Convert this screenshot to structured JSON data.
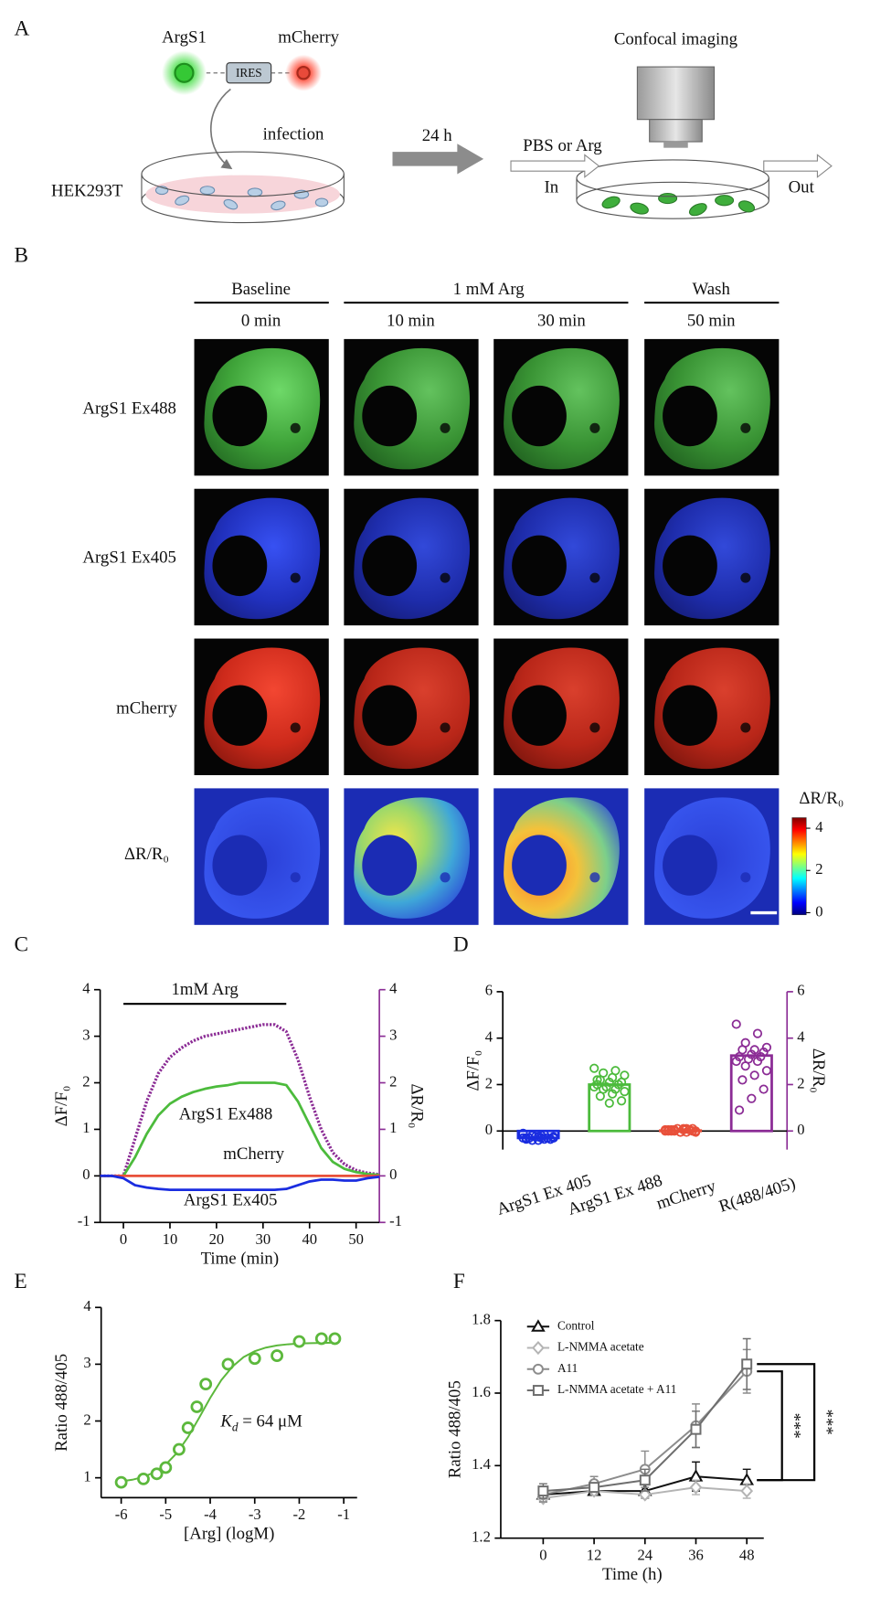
{
  "panel_a": {
    "label": "A",
    "sensor": "ArgS1",
    "reporter": "mCherry",
    "linker": "IRES",
    "infection": "infection",
    "cell_line": "HEK293T",
    "duration": "24 h",
    "imaging": "Confocal imaging",
    "treatment": "PBS or Arg",
    "inlet": "In",
    "outlet": "Out"
  },
  "panel_b": {
    "label": "B",
    "groups": [
      {
        "title": "Baseline",
        "times": [
          "0 min"
        ]
      },
      {
        "title": "1 mM Arg",
        "times": [
          "10 min",
          "30 min"
        ]
      },
      {
        "title": "Wash",
        "times": [
          "50 min"
        ]
      }
    ],
    "rows": [
      "ArgS1 Ex488",
      "ArgS1 Ex405",
      "mCherry",
      "ΔR/R₀"
    ],
    "colorbar": {
      "title": "ΔR/R₀",
      "lim": [
        -0.1,
        4.5
      ],
      "ticks": [
        0,
        2,
        4
      ]
    }
  },
  "chart_data": [
    {
      "panel": "C",
      "type": "line",
      "x": [
        -5,
        -2.5,
        0,
        2.5,
        5,
        7.5,
        10,
        12.5,
        15,
        17.5,
        20,
        22.5,
        25,
        27.5,
        30,
        32.5,
        35,
        37.5,
        40,
        42.5,
        45,
        47.5,
        50,
        52.5,
        55
      ],
      "xlim": [
        -5,
        55
      ],
      "xticks": [
        0,
        10,
        20,
        30,
        40,
        50
      ],
      "ylim": [
        -1,
        4
      ],
      "yticks": [
        -1,
        0,
        1,
        2,
        3,
        4
      ],
      "y2lim": [
        -1,
        4
      ],
      "y2ticks": [
        -1,
        0,
        1,
        2,
        3,
        4
      ],
      "xlabel": "Time (min)",
      "ylabel": "ΔF/F₀",
      "y2label": "ΔR/R₀",
      "annotation": {
        "text": "1mM Arg",
        "x": [
          0,
          35
        ]
      },
      "series": [
        {
          "name": "ArgS1 Ex488",
          "color": "#4cbb3c",
          "values": [
            0,
            0,
            0,
            0.4,
            0.9,
            1.3,
            1.55,
            1.7,
            1.8,
            1.87,
            1.92,
            1.95,
            2.0,
            2.0,
            2.0,
            2.0,
            1.95,
            1.6,
            1.1,
            0.6,
            0.3,
            0.15,
            0.08,
            0.04,
            0.02
          ]
        },
        {
          "name": "mCherry",
          "color": "#e8503a",
          "values": [
            0,
            0,
            0,
            0,
            0,
            0,
            0,
            0,
            0,
            0,
            0,
            0,
            0,
            0,
            0,
            0,
            0,
            0,
            0,
            0,
            0,
            0,
            0,
            0,
            0
          ]
        },
        {
          "name": "ArgS1 Ex405",
          "color": "#1a2de0",
          "values": [
            0,
            0,
            -0.05,
            -0.2,
            -0.25,
            -0.28,
            -0.3,
            -0.3,
            -0.3,
            -0.3,
            -0.3,
            -0.3,
            -0.3,
            -0.3,
            -0.3,
            -0.3,
            -0.28,
            -0.2,
            -0.12,
            -0.08,
            -0.08,
            -0.1,
            -0.1,
            -0.05,
            -0.02
          ]
        },
        {
          "axis": "y2",
          "color": "#8b2c95",
          "values": [
            0,
            0,
            0,
            0.8,
            1.6,
            2.2,
            2.55,
            2.75,
            2.9,
            3.0,
            3.05,
            3.1,
            3.15,
            3.2,
            3.25,
            3.25,
            3.1,
            2.5,
            1.7,
            1.0,
            0.5,
            0.25,
            0.12,
            0.06,
            0.03
          ]
        }
      ]
    },
    {
      "panel": "D",
      "type": "bar",
      "categories": [
        "ArgS1 Ex 405",
        "ArgS1 Ex 488",
        "mCherry",
        "R(488/405)"
      ],
      "colors": [
        "#1a2de0",
        "#4cbb3c",
        "#e8503a",
        "#8b2c95"
      ],
      "ylim": [
        -0.8,
        6
      ],
      "yticks": [
        0,
        2,
        4,
        6
      ],
      "y2lim": [
        -0.8,
        6
      ],
      "y2ticks": [
        0,
        2,
        4,
        6
      ],
      "ylabel": "ΔF/F₀",
      "y2label": "ΔR/R₀",
      "series": [
        {
          "values": [
            -0.3,
            2.0,
            0.02,
            null
          ],
          "points": [
            [
              -0.1,
              -0.15,
              -0.2,
              -0.25,
              -0.3,
              -0.3,
              -0.35,
              -0.4,
              -0.35,
              -0.3,
              -0.25,
              -0.3,
              -0.35,
              -0.4,
              -0.3,
              -0.2,
              -0.3,
              -0.35,
              -0.25,
              -0.3
            ],
            [
              2.7,
              2.6,
              2.5,
              2.4,
              2.3,
              2.2,
              2.1,
              2.1,
              2.0,
              2.0,
              1.9,
              1.9,
              1.8,
              1.8,
              1.7,
              1.6,
              1.5,
              1.3,
              1.2,
              2.2
            ],
            [
              0.05,
              0.1,
              0.0,
              -0.05,
              0.05,
              0.0,
              0.1,
              -0.05,
              0.0,
              0.05,
              0.1,
              0.0,
              -0.05,
              0.05,
              0.0,
              0.1,
              0.05,
              0.0,
              -0.05,
              0.05
            ],
            []
          ]
        },
        {
          "axis": "y2",
          "color": "#8b2c95",
          "values": [
            null,
            null,
            null,
            3.25
          ],
          "points": [
            [],
            [],
            [],
            [
              4.6,
              4.2,
              3.8,
              3.6,
              3.5,
              3.5,
              3.4,
              3.3,
              3.2,
              3.2,
              3.1,
              3.0,
              3.0,
              2.8,
              2.6,
              2.4,
              2.2,
              1.8,
              1.4,
              0.9
            ]
          ]
        }
      ]
    },
    {
      "panel": "E",
      "type": "scatter",
      "color": "#5cb83c",
      "x": [
        -6,
        -5.5,
        -5.2,
        -5,
        -4.7,
        -4.5,
        -4.3,
        -4.1,
        -3.6,
        -3,
        -2.5,
        -2,
        -1.5,
        -1.2
      ],
      "values": [
        0.92,
        0.98,
        1.07,
        1.18,
        1.5,
        1.88,
        2.25,
        2.65,
        3.0,
        3.1,
        3.15,
        3.4,
        3.45,
        3.45
      ],
      "fit": {
        "x": [
          -6,
          -5.75,
          -5.5,
          -5.25,
          -5,
          -4.75,
          -4.5,
          -4.25,
          -4,
          -3.75,
          -3.5,
          -3.25,
          -3,
          -2.75,
          -2.5,
          -2.25,
          -2,
          -1.75,
          -1.5,
          -1.25
        ],
        "values": [
          0.938,
          0.966,
          1.016,
          1.099,
          1.233,
          1.435,
          1.716,
          2.054,
          2.407,
          2.72,
          2.958,
          3.125,
          3.229,
          3.293,
          3.33,
          3.352,
          3.364,
          3.371,
          3.375,
          3.378
        ]
      },
      "xlim": [
        -6.45,
        -0.7
      ],
      "xticks": [
        -6,
        -5,
        -4,
        -3,
        -2,
        -1
      ],
      "ylim": [
        0.65,
        4
      ],
      "yticks": [
        1,
        2,
        3,
        4
      ],
      "xlabel": "[Arg] (logM)",
      "ylabel": "Ratio 488/405",
      "annotation": {
        "symbol": "K",
        "subscript": "d",
        "text": " = 64 μM"
      }
    },
    {
      "panel": "F",
      "type": "line",
      "x": [
        0,
        12,
        24,
        36,
        48
      ],
      "xlim": [
        -10,
        52
      ],
      "xticks": [
        0,
        12,
        24,
        36,
        48
      ],
      "ylim": [
        1.2,
        1.8
      ],
      "yticks": [
        1.2,
        1.4,
        1.6,
        1.8
      ],
      "xlabel": "Time (h)",
      "ylabel": "Ratio 488/405",
      "legend": "upper left",
      "annotations": [
        "***",
        "***"
      ],
      "series": [
        {
          "name": "Control",
          "color": "#111111",
          "marker": "triangle",
          "values": [
            1.32,
            1.33,
            1.33,
            1.37,
            1.36
          ],
          "errors": [
            0.02,
            0.01,
            0.02,
            0.04,
            0.03
          ]
        },
        {
          "name": "L-NMMA acetate",
          "color": "#b4b4b4",
          "marker": "diamond",
          "values": [
            1.31,
            1.33,
            1.32,
            1.34,
            1.33
          ],
          "errors": [
            0.01,
            0.01,
            0.01,
            0.02,
            0.02
          ]
        },
        {
          "name": "A11",
          "color": "#8c8c8c",
          "marker": "circle",
          "values": [
            1.32,
            1.35,
            1.39,
            1.51,
            1.66
          ],
          "errors": [
            0.02,
            0.02,
            0.05,
            0.06,
            0.06
          ]
        },
        {
          "name": "L-NMMA acetate + A11",
          "color": "#6e6e6e",
          "marker": "square",
          "values": [
            1.33,
            1.34,
            1.36,
            1.5,
            1.68
          ],
          "errors": [
            0.02,
            0.01,
            0.03,
            0.05,
            0.07
          ]
        }
      ]
    }
  ]
}
